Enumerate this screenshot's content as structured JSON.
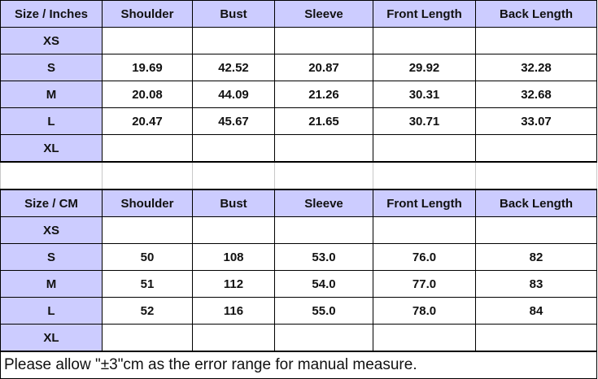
{
  "columns_inches": [
    "Size / Inches",
    "Shoulder",
    "Bust",
    "Sleeve",
    "Front Length",
    "Back Length"
  ],
  "rows_inches": [
    [
      "XS",
      "",
      "",
      "",
      "",
      ""
    ],
    [
      "S",
      "19.69",
      "42.52",
      "20.87",
      "29.92",
      "32.28"
    ],
    [
      "M",
      "20.08",
      "44.09",
      "21.26",
      "30.31",
      "32.68"
    ],
    [
      "L",
      "20.47",
      "45.67",
      "21.65",
      "30.71",
      "33.07"
    ],
    [
      "XL",
      "",
      "",
      "",
      "",
      ""
    ]
  ],
  "columns_cm": [
    "Size / CM",
    "Shoulder",
    "Bust",
    "Sleeve",
    "Front Length",
    "Back Length"
  ],
  "rows_cm": [
    [
      "XS",
      "",
      "",
      "",
      "",
      ""
    ],
    [
      "S",
      "50",
      "108",
      "53.0",
      "76.0",
      "82"
    ],
    [
      "M",
      "51",
      "112",
      "54.0",
      "77.0",
      "83"
    ],
    [
      "L",
      "52",
      "116",
      "55.0",
      "78.0",
      "84"
    ],
    [
      "XL",
      "",
      "",
      "",
      "",
      ""
    ]
  ],
  "note": "Please allow \"±3\"cm as the error range for manual measure.",
  "colors": {
    "header_bg": "#ccccff",
    "border": "#000000"
  }
}
